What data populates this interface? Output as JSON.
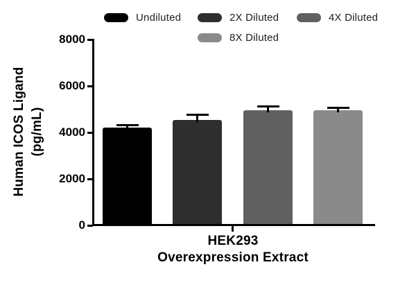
{
  "figure": {
    "background": "#ffffff",
    "axis_color": "#000000"
  },
  "legend": {
    "rows": [
      {
        "items": [
          {
            "label": "Undiluted",
            "color": "#000000"
          },
          {
            "label": "2X Diluted",
            "color": "#2e2e2e"
          },
          {
            "label": "4X Diluted",
            "color": "#606060"
          }
        ]
      },
      {
        "items": [
          {
            "label": "8X Diluted",
            "color": "#8a8a8a"
          }
        ]
      }
    ]
  },
  "chart_data": {
    "type": "bar",
    "title": "",
    "ylabel": "Human ICOS Ligand (pg/mL)",
    "ylabel_line1": "Human ICOS Ligand",
    "ylabel_line2": "(pg/mL)",
    "xlabel_line1": "HEK293",
    "xlabel_line2": "Overexpression Extract",
    "categories": [
      "Undiluted",
      "2X Diluted",
      "4X Diluted",
      "8X Diluted"
    ],
    "values": [
      4200,
      4550,
      4950,
      4950
    ],
    "errors": [
      110,
      190,
      160,
      100
    ],
    "error_direction": "up",
    "bar_colors": [
      "#000000",
      "#2e2e2e",
      "#606060",
      "#8a8a8a"
    ],
    "ylim": [
      0,
      8000
    ],
    "yticks": [
      0,
      2000,
      4000,
      6000,
      8000
    ],
    "ytick_labels": [
      "0",
      "2000",
      "4000",
      "6000",
      "8000"
    ],
    "legend_position": "top",
    "grid": false
  }
}
